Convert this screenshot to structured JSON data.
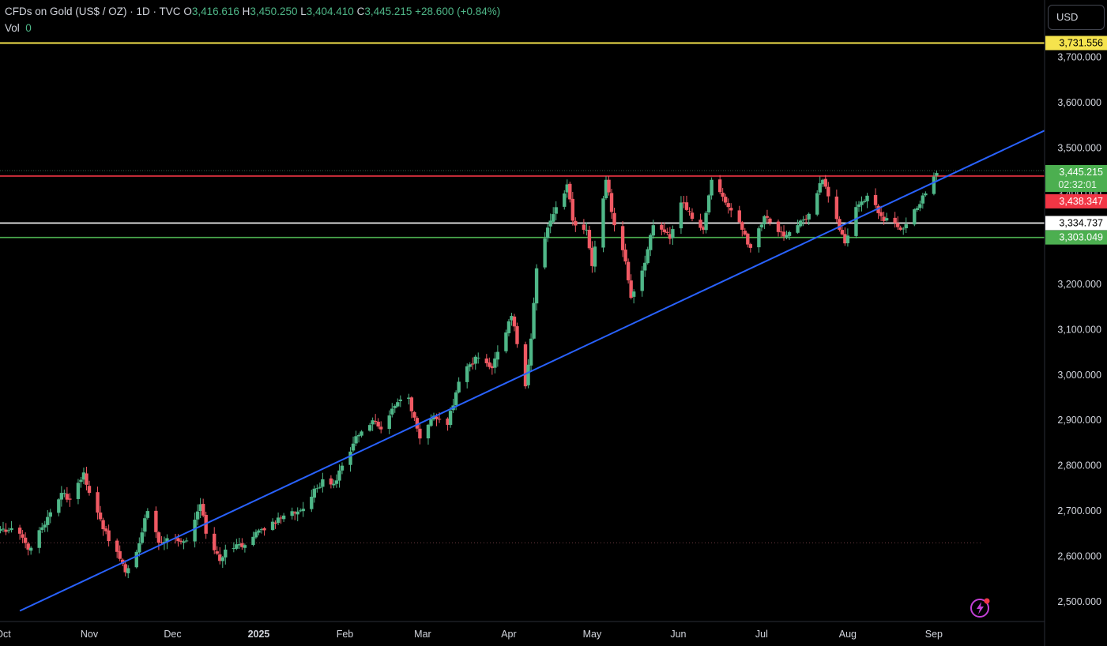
{
  "header": {
    "symbol": "CFDs on Gold (US$ / OZ) · 1D · TVC",
    "open_label": "O",
    "open_value": "3,416.616",
    "high_label": "H",
    "high_value": "3,450.250",
    "low_label": "L",
    "low_value": "3,404.410",
    "close_label": "C",
    "close_value": "3,445.215",
    "change": "+28.600 (+0.84%)",
    "vol_label": "Vol",
    "vol_value": "0"
  },
  "currency_button": "USD",
  "colors": {
    "up": "#4fb788",
    "down": "#f05963",
    "trendline": "#2962ff",
    "yellow": "#f5e34d",
    "red_line": "#f23645",
    "white_line": "#ffffff",
    "green_line": "#4caf50",
    "axis_text": "#d1d4dc",
    "bolt": "#c340d6"
  },
  "chart_data": {
    "type": "candlestick",
    "instrument": "CFDs on Gold (US$ / OZ)",
    "timeframe": "1D",
    "y_ticks": [
      2500,
      2600,
      2700,
      2800,
      2900,
      3000,
      3100,
      3200,
      3300,
      3400,
      3500,
      3600,
      3700
    ],
    "y_tick_labels": [
      "2,500.000",
      "2,600.000",
      "2,700.000",
      "2,800.000",
      "2,900.000",
      "3,000.000",
      "3,100.000",
      "3,200.000",
      "3,300.000",
      "3,400.000",
      "3,500.000",
      "3,600.000",
      "3,700.000"
    ],
    "x_tick_labels": [
      "Oct",
      "Nov",
      "Dec",
      "2025",
      "Feb",
      "Mar",
      "Apr",
      "May",
      "Jun",
      "Jul",
      "Aug",
      "Sep"
    ],
    "horizontal_lines": [
      {
        "name": "alert-high",
        "price": 3731.556,
        "label": "3,731.556",
        "color": "#f5e34d"
      },
      {
        "name": "last-price",
        "price": 3445.215,
        "label": "3,445.215",
        "countdown": "02:32:01",
        "color": "#4caf50"
      },
      {
        "name": "resistance",
        "price": 3438.347,
        "label": "3,438.347",
        "color": "#f23645"
      },
      {
        "name": "pivot",
        "price": 3334.737,
        "label": "3,334.737",
        "color": "#ffffff"
      },
      {
        "name": "support",
        "price": 3303.049,
        "label": "3,303.049",
        "color": "#4caf50"
      }
    ],
    "trendline": {
      "from": {
        "date": "2024-10-07",
        "price": 2480
      },
      "to": {
        "date": "2025-09-03",
        "price": 3430
      }
    },
    "dotted_level": 2630,
    "waypoints": [
      [
        "2024-09-30",
        2660
      ],
      [
        "2024-10-07",
        2650
      ],
      [
        "2024-10-10",
        2615
      ],
      [
        "2024-10-16",
        2670
      ],
      [
        "2024-10-22",
        2740
      ],
      [
        "2024-10-25",
        2725
      ],
      [
        "2024-10-30",
        2785
      ],
      [
        "2024-11-01",
        2740
      ],
      [
        "2024-11-06",
        2660
      ],
      [
        "2024-11-11",
        2610
      ],
      [
        "2024-11-14",
        2565
      ],
      [
        "2024-11-18",
        2610
      ],
      [
        "2024-11-22",
        2700
      ],
      [
        "2024-11-26",
        2630
      ],
      [
        "2024-12-02",
        2640
      ],
      [
        "2024-12-06",
        2635
      ],
      [
        "2024-12-11",
        2715
      ],
      [
        "2024-12-13",
        2650
      ],
      [
        "2024-12-18",
        2590
      ],
      [
        "2024-12-20",
        2615
      ],
      [
        "2024-12-27",
        2625
      ],
      [
        "2025-01-02",
        2660
      ],
      [
        "2025-01-10",
        2690
      ],
      [
        "2025-01-17",
        2705
      ],
      [
        "2025-01-24",
        2770
      ],
      [
        "2025-01-28",
        2760
      ],
      [
        "2025-01-31",
        2800
      ],
      [
        "2025-02-05",
        2865
      ],
      [
        "2025-02-11",
        2900
      ],
      [
        "2025-02-14",
        2880
      ],
      [
        "2025-02-20",
        2940
      ],
      [
        "2025-02-24",
        2950
      ],
      [
        "2025-02-28",
        2860
      ],
      [
        "2025-03-05",
        2910
      ],
      [
        "2025-03-10",
        2890
      ],
      [
        "2025-03-14",
        2985
      ],
      [
        "2025-03-20",
        3040
      ],
      [
        "2025-03-26",
        3015
      ],
      [
        "2025-04-02",
        3130
      ],
      [
        "2025-04-07",
        2975
      ],
      [
        "2025-04-09",
        3080
      ],
      [
        "2025-04-11",
        3235
      ],
      [
        "2025-04-16",
        3340
      ],
      [
        "2025-04-22",
        3420
      ],
      [
        "2025-04-24",
        3340
      ],
      [
        "2025-04-29",
        3320
      ],
      [
        "2025-05-01",
        3240
      ],
      [
        "2025-05-06",
        3430
      ],
      [
        "2025-05-09",
        3330
      ],
      [
        "2025-05-13",
        3250
      ],
      [
        "2025-05-15",
        3170
      ],
      [
        "2025-05-19",
        3230
      ],
      [
        "2025-05-23",
        3330
      ],
      [
        "2025-05-29",
        3300
      ],
      [
        "2025-06-02",
        3380
      ],
      [
        "2025-06-05",
        3360
      ],
      [
        "2025-06-10",
        3320
      ],
      [
        "2025-06-13",
        3430
      ],
      [
        "2025-06-19",
        3370
      ],
      [
        "2025-06-24",
        3320
      ],
      [
        "2025-06-27",
        3280
      ],
      [
        "2025-07-02",
        3350
      ],
      [
        "2025-07-09",
        3305
      ],
      [
        "2025-07-15",
        3340
      ],
      [
        "2025-07-18",
        3355
      ],
      [
        "2025-07-23",
        3430
      ],
      [
        "2025-07-29",
        3320
      ],
      [
        "2025-07-31",
        3290
      ],
      [
        "2025-08-04",
        3370
      ],
      [
        "2025-08-08",
        3395
      ],
      [
        "2025-08-13",
        3350
      ],
      [
        "2025-08-18",
        3335
      ],
      [
        "2025-08-20",
        3320
      ],
      [
        "2025-08-25",
        3365
      ],
      [
        "2025-08-29",
        3400
      ],
      [
        "2025-09-02",
        3445
      ]
    ]
  }
}
